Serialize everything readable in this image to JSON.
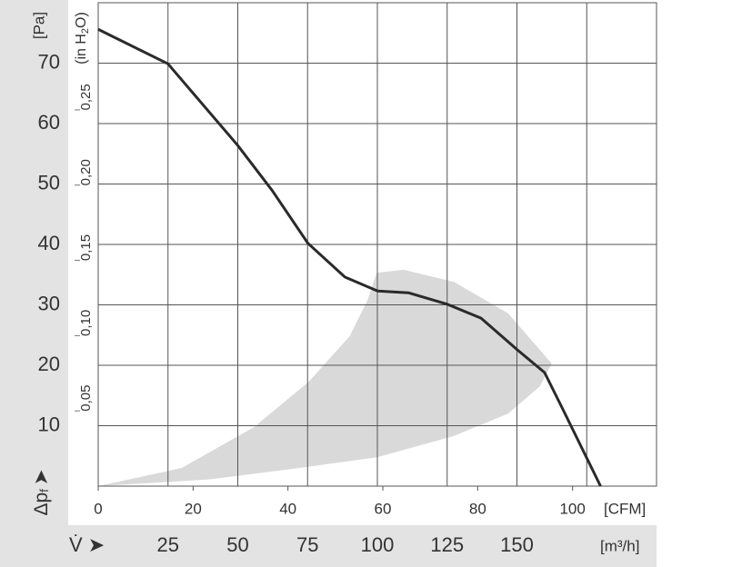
{
  "chart_data": {
    "type": "line",
    "y_label": {
      "main": "Δp",
      "sub": "f",
      "arrow": "➤"
    },
    "y_unit": "[Pa]",
    "y2_label": {
      "pre": "(in H",
      "sub": "2",
      "post": "O)"
    },
    "x_unit": "[CFM]",
    "x2_label": {
      "main": "V̇",
      "arrow": "➤"
    },
    "x2_unit": "[m³/h]",
    "xlim": [
      0,
      117.7
    ],
    "xticks": [
      0,
      20,
      40,
      60,
      80,
      100
    ],
    "x2lim": [
      0,
      200
    ],
    "x2ticks": [
      25,
      50,
      75,
      100,
      125,
      150
    ],
    "x2_gridlines": [
      25,
      50,
      75,
      100,
      125,
      150,
      175
    ],
    "ylim": [
      0,
      80
    ],
    "yticks": [
      10,
      20,
      30,
      40,
      50,
      60,
      70
    ],
    "y2lim": [
      0,
      0.3212
    ],
    "y2ticks": [
      {
        "value": 0.05,
        "label": "0,05"
      },
      {
        "value": 0.1,
        "label": "0,10"
      },
      {
        "value": 0.15,
        "label": "0,15"
      },
      {
        "value": 0.2,
        "label": "0,20"
      },
      {
        "value": 0.25,
        "label": "0,25"
      }
    ],
    "grid": true,
    "series": [
      {
        "color": "#2a2a2a",
        "x": [
          0,
          14.7,
          29.4,
          36.7,
          44.2,
          52,
          58.9,
          65.4,
          73.6,
          80.7,
          88.3,
          94.1,
          97.9,
          105.9
        ],
        "values": [
          75.6,
          69.9,
          56.4,
          48.9,
          40.2,
          34.6,
          32.3,
          32,
          30.1,
          27.8,
          22.6,
          18.8,
          12.8,
          0
        ]
      }
    ],
    "region": {
      "color": "#d9d9d9",
      "x": [
        0,
        17.6,
        32.9,
        44.4,
        53,
        56.8,
        58.7,
        64.4,
        75,
        86.4,
        95.6,
        93.1,
        86.4,
        75,
        58.9,
        42.4,
        23.3
      ],
      "values": [
        0,
        3,
        9.8,
        17.3,
        24.8,
        30.8,
        35.3,
        35.8,
        33.8,
        28.6,
        20.3,
        16.5,
        12,
        8.3,
        4.8,
        3,
        1.1
      ]
    }
  }
}
